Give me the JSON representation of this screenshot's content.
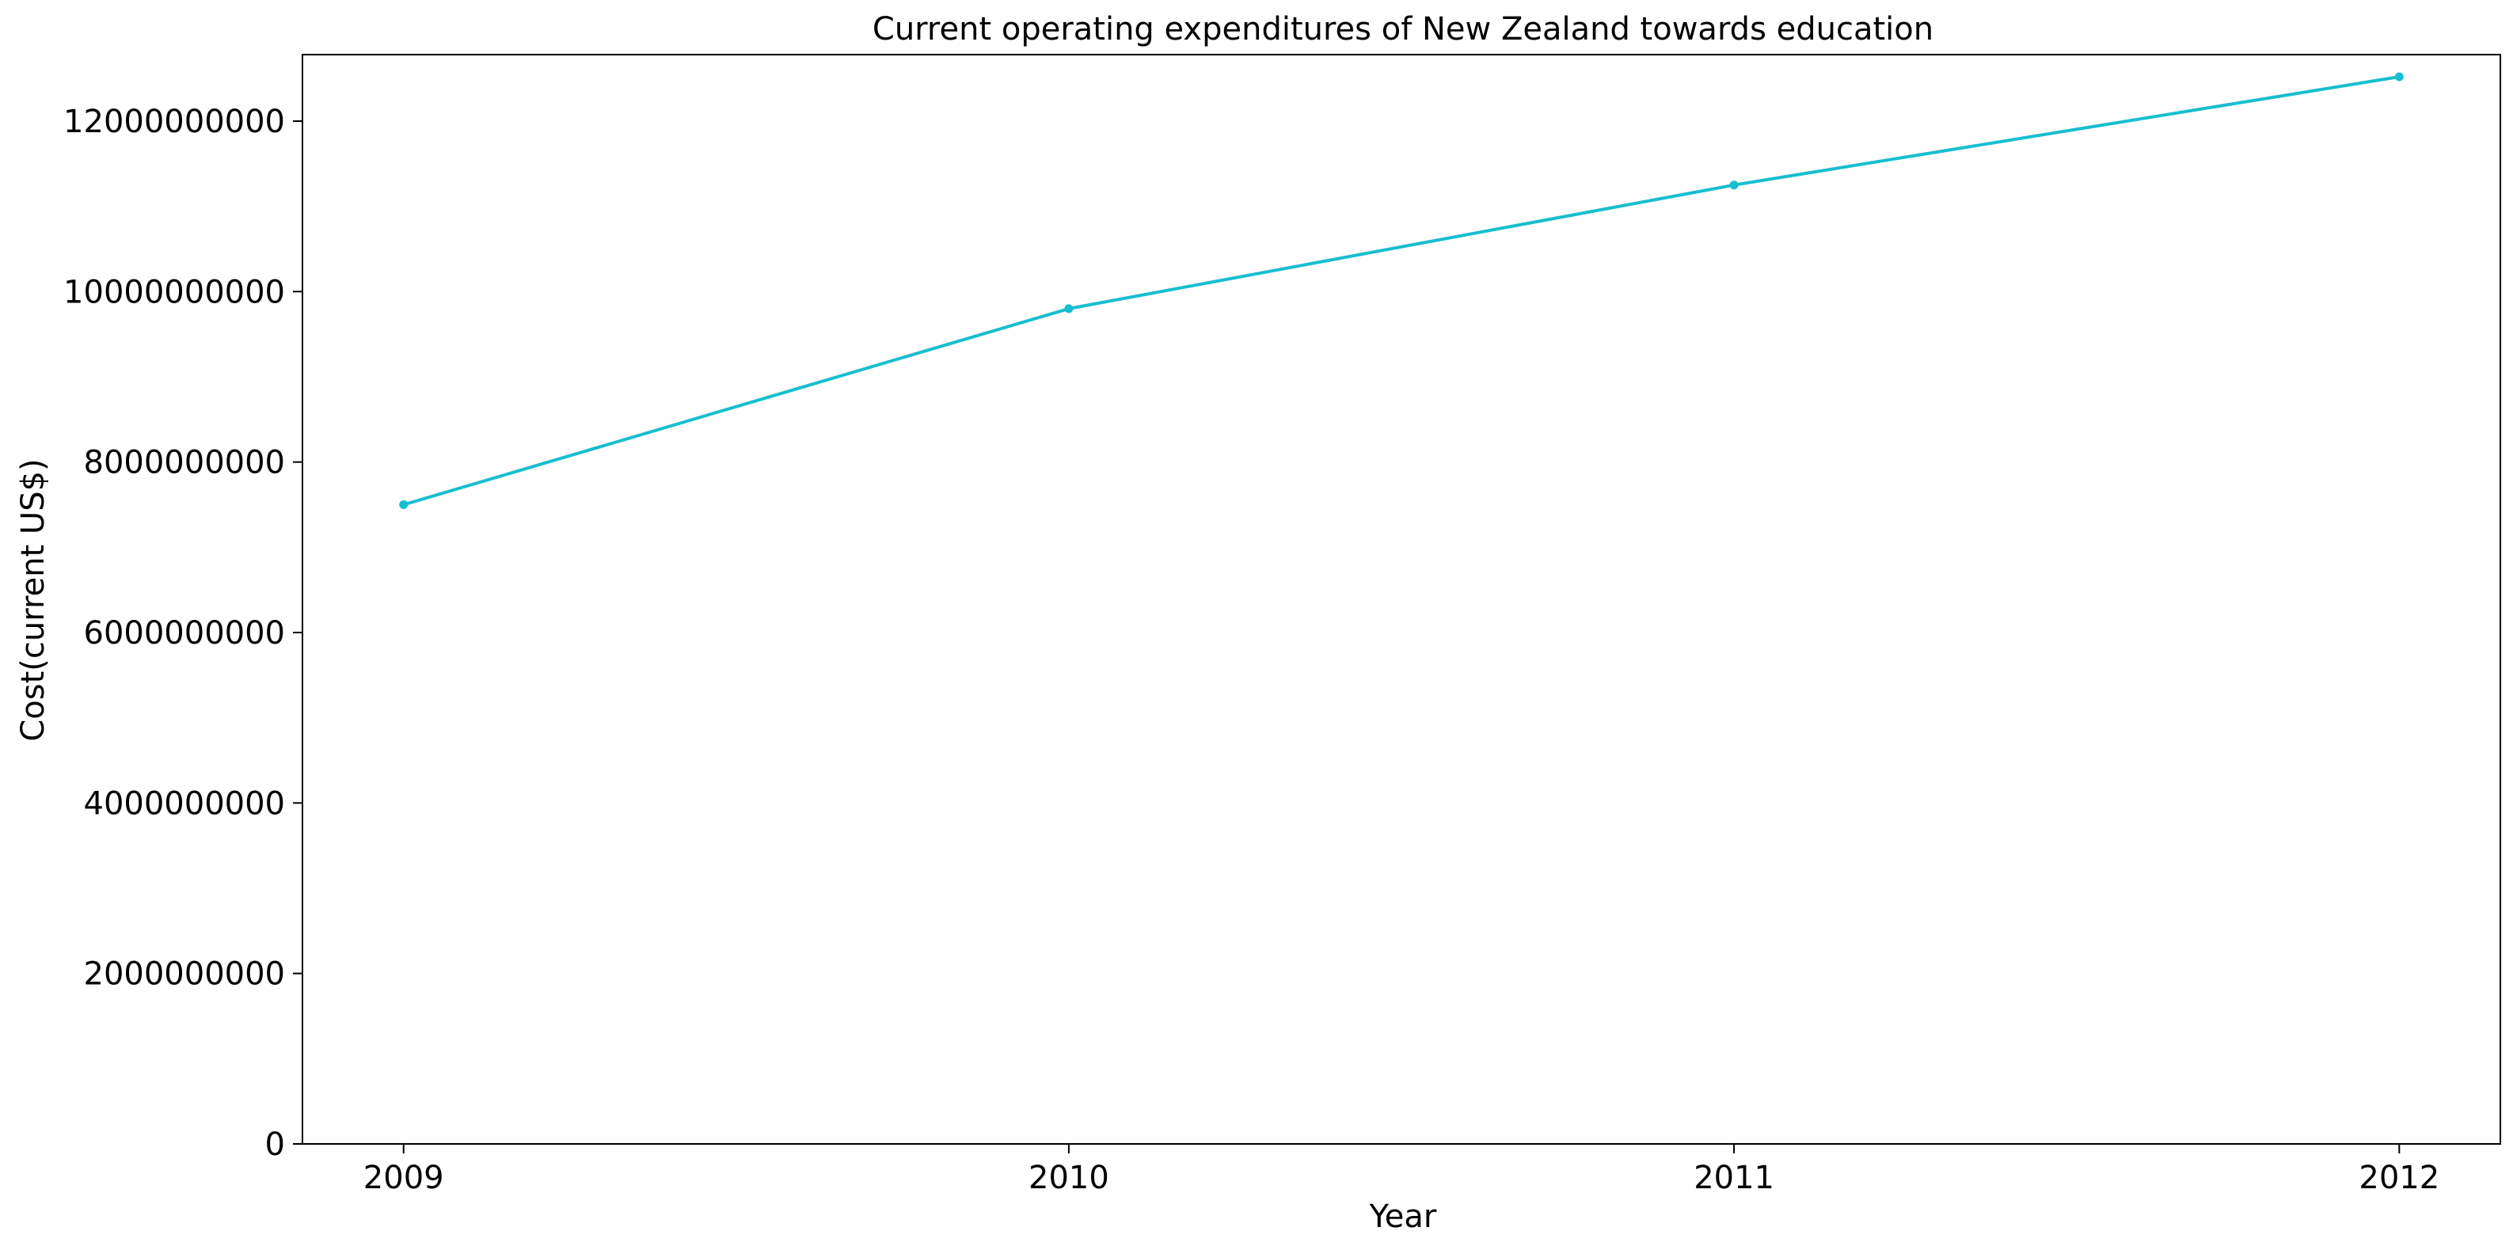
{
  "chart_data": {
    "type": "line",
    "title": "Current operating expenditures of New Zealand towards education",
    "xlabel": "Year",
    "ylabel": "Cost(current US$)",
    "x": [
      "2009",
      "2010",
      "2011",
      "2012"
    ],
    "series": [
      {
        "values": [
          7500000000,
          9800000000,
          11250000000,
          12520000000
        ],
        "color": "#17becf"
      }
    ],
    "xticks": [
      "2009",
      "2010",
      "2011",
      "2012"
    ],
    "yticks": [
      "0",
      "2000000000",
      "4000000000",
      "6000000000",
      "8000000000",
      "10000000000",
      "12000000000"
    ],
    "ylim": [
      0,
      12780000000
    ],
    "grid": false,
    "legend": "none"
  }
}
